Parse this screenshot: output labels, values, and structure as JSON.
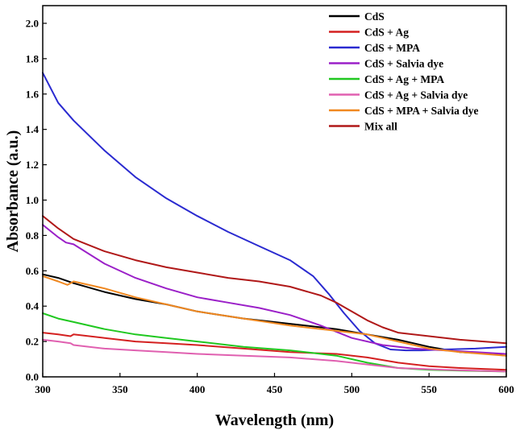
{
  "chart_data": {
    "type": "line",
    "xlabel": "Wavelength (nm)",
    "ylabel": "Absorbance (a.u.)",
    "xlim": [
      300,
      600
    ],
    "ylim": [
      0,
      2.1
    ],
    "xticks": [
      300,
      350,
      400,
      450,
      500,
      550,
      600
    ],
    "xtick_labels": [
      "300",
      "350",
      "400",
      "450",
      "500",
      "550",
      "600"
    ],
    "yticks": [
      0,
      0.2,
      0.4,
      0.6,
      0.8,
      1.0,
      1.2,
      1.4,
      1.6,
      1.8,
      2.0
    ],
    "ytick_labels": [
      "0.0",
      "0.2",
      "0.4",
      "0.6",
      "0.8",
      "1.0",
      "1.2",
      "1.4",
      "1.6",
      "1.8",
      "2.0"
    ],
    "grid": false,
    "legend_position": "top-right",
    "series": [
      {
        "name": "CdS",
        "color": "#000000",
        "x": [
          300,
          310,
          320,
          340,
          360,
          380,
          400,
          430,
          460,
          490,
          510,
          530,
          550,
          570,
          590,
          600
        ],
        "y": [
          0.58,
          0.56,
          0.53,
          0.48,
          0.44,
          0.41,
          0.37,
          0.33,
          0.3,
          0.27,
          0.24,
          0.21,
          0.17,
          0.14,
          0.13,
          0.12
        ]
      },
      {
        "name": "CdS + Ag",
        "color": "#d42020",
        "x": [
          300,
          310,
          318,
          320,
          340,
          360,
          380,
          400,
          430,
          460,
          490,
          510,
          530,
          550,
          570,
          600
        ],
        "y": [
          0.25,
          0.24,
          0.23,
          0.24,
          0.22,
          0.2,
          0.19,
          0.18,
          0.16,
          0.14,
          0.13,
          0.11,
          0.08,
          0.06,
          0.05,
          0.04
        ]
      },
      {
        "name": "CdS + MPA",
        "color": "#2a2ad0",
        "x": [
          300,
          310,
          320,
          340,
          360,
          380,
          400,
          420,
          440,
          460,
          475,
          485,
          495,
          505,
          515,
          525,
          535,
          545,
          560,
          580,
          600
        ],
        "y": [
          1.72,
          1.55,
          1.45,
          1.28,
          1.13,
          1.01,
          0.91,
          0.82,
          0.74,
          0.66,
          0.57,
          0.47,
          0.36,
          0.26,
          0.19,
          0.155,
          0.15,
          0.15,
          0.155,
          0.16,
          0.17
        ]
      },
      {
        "name": "CdS + Salvia dye",
        "color": "#9b20c8",
        "x": [
          300,
          310,
          315,
          320,
          340,
          360,
          380,
          400,
          420,
          440,
          460,
          480,
          500,
          520,
          540,
          560,
          580,
          600
        ],
        "y": [
          0.86,
          0.79,
          0.76,
          0.75,
          0.64,
          0.56,
          0.5,
          0.45,
          0.42,
          0.39,
          0.35,
          0.29,
          0.22,
          0.18,
          0.16,
          0.15,
          0.14,
          0.13
        ]
      },
      {
        "name": "CdS + Ag + MPA",
        "color": "#20c820",
        "x": [
          300,
          310,
          320,
          340,
          360,
          380,
          400,
          430,
          460,
          490,
          510,
          530,
          550,
          570,
          600
        ],
        "y": [
          0.36,
          0.33,
          0.31,
          0.27,
          0.24,
          0.22,
          0.2,
          0.17,
          0.15,
          0.12,
          0.08,
          0.05,
          0.04,
          0.035,
          0.03
        ]
      },
      {
        "name": "CdS + Ag + Salvia dye",
        "color": "#e060b0",
        "x": [
          300,
          310,
          318,
          320,
          340,
          360,
          380,
          400,
          430,
          460,
          490,
          510,
          530,
          560,
          600
        ],
        "y": [
          0.21,
          0.2,
          0.19,
          0.18,
          0.16,
          0.15,
          0.14,
          0.13,
          0.12,
          0.11,
          0.09,
          0.07,
          0.05,
          0.04,
          0.03
        ]
      },
      {
        "name": "CdS + MPA + Salvia dye",
        "color": "#f08820",
        "x": [
          300,
          310,
          316,
          318,
          320,
          340,
          360,
          380,
          400,
          430,
          460,
          490,
          510,
          530,
          550,
          570,
          600
        ],
        "y": [
          0.57,
          0.54,
          0.52,
          0.53,
          0.54,
          0.5,
          0.45,
          0.41,
          0.37,
          0.33,
          0.29,
          0.26,
          0.24,
          0.2,
          0.16,
          0.14,
          0.12
        ]
      },
      {
        "name": "Mix all",
        "color": "#b01818",
        "x": [
          300,
          310,
          320,
          340,
          360,
          380,
          400,
          420,
          440,
          460,
          480,
          490,
          500,
          510,
          520,
          530,
          550,
          570,
          600
        ],
        "y": [
          0.91,
          0.84,
          0.78,
          0.71,
          0.66,
          0.62,
          0.59,
          0.56,
          0.54,
          0.51,
          0.46,
          0.42,
          0.37,
          0.32,
          0.28,
          0.25,
          0.23,
          0.21,
          0.19
        ]
      }
    ]
  }
}
